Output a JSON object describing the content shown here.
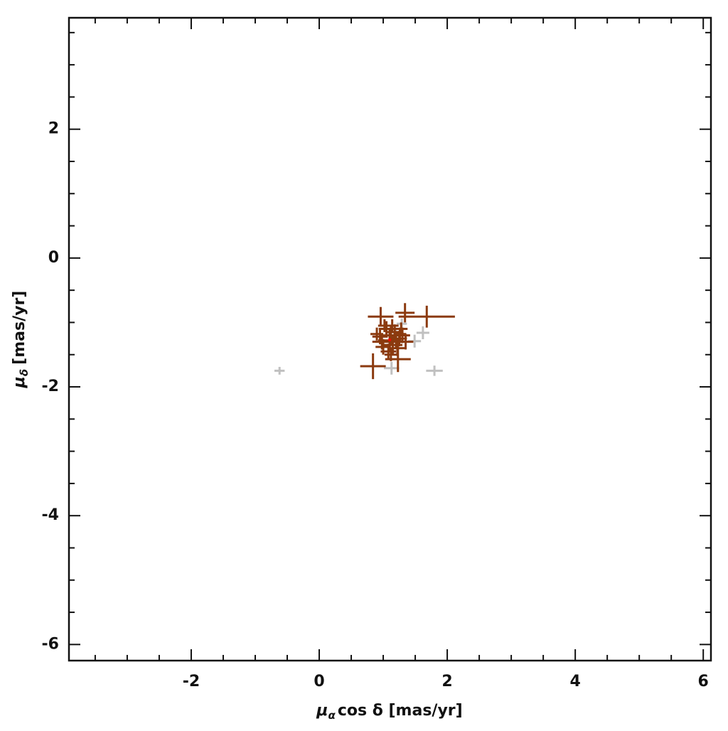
{
  "chart_data": {
    "type": "scatter",
    "x_label": {
      "symbol": "μ",
      "sub": "α",
      "rest": "cos δ [mas/yr]"
    },
    "y_label": {
      "symbol": "μ",
      "sub": "δ",
      "rest": "[mas/yr]"
    },
    "xlim": [
      -3.91,
      6.12
    ],
    "ylim": [
      -6.25,
      3.73
    ],
    "xticks": [
      -2,
      0,
      2,
      4,
      6
    ],
    "yticks": [
      2,
      0,
      -2,
      -4,
      -6
    ],
    "x_minor_ticks": [
      -3.5,
      -3,
      -2.5,
      -1.5,
      -1,
      -0.5,
      0.5,
      1,
      1.5,
      2.5,
      3,
      3.5,
      4.5,
      5,
      5.5
    ],
    "y_minor_ticks": [
      3.5,
      3,
      2.5,
      1.5,
      1,
      0.5,
      -0.5,
      -1,
      -1.5,
      -2.5,
      -3,
      -3.5,
      -4.5,
      -5,
      -5.5
    ],
    "series": [
      {
        "color": "#c0c0c0",
        "x": [
          -0.62,
          1.13,
          1.8,
          1.49,
          1.62,
          1.29,
          1.2
        ],
        "values": [
          -1.75,
          -1.71,
          -1.75,
          -1.29,
          -1.16,
          -1.02,
          -1.2
        ],
        "xerr": [
          0.08,
          0.12,
          0.13,
          0.1,
          0.1,
          0.08,
          0.08
        ],
        "yerr": [
          0.06,
          0.1,
          0.08,
          0.1,
          0.1,
          0.08,
          0.08
        ]
      },
      {
        "color": "#8b3a0f",
        "x": [
          0.84,
          1.23,
          1.68,
          1.34,
          0.96,
          1.05,
          1.12,
          1.18,
          1.25,
          0.98,
          1.3,
          1.02,
          1.15,
          1.22,
          0.9,
          1.1,
          1.28,
          1.08,
          1.2,
          0.95,
          1.35,
          1.14,
          1.0,
          1.26,
          1.12
        ],
        "values": [
          -1.68,
          -1.57,
          -0.91,
          -0.85,
          -0.91,
          -1.1,
          -1.2,
          -1.15,
          -1.25,
          -1.3,
          -1.2,
          -1.05,
          -1.35,
          -1.4,
          -1.18,
          -1.28,
          -1.1,
          -1.45,
          -1.3,
          -1.22,
          -1.3,
          -1.05,
          -1.38,
          -1.18,
          -1.5
        ],
        "xerr": [
          0.2,
          0.2,
          0.44,
          0.15,
          0.2,
          0.12,
          0.15,
          0.12,
          0.12,
          0.15,
          0.12,
          0.1,
          0.15,
          0.12,
          0.1,
          0.18,
          0.1,
          0.12,
          0.1,
          0.12,
          0.12,
          0.1,
          0.12,
          0.1,
          0.1
        ],
        "yerr": [
          0.2,
          0.2,
          0.17,
          0.15,
          0.15,
          0.12,
          0.15,
          0.12,
          0.12,
          0.12,
          0.12,
          0.1,
          0.15,
          0.12,
          0.1,
          0.18,
          0.1,
          0.12,
          0.1,
          0.12,
          0.12,
          0.1,
          0.12,
          0.1,
          0.1
        ]
      },
      {
        "color": "#ff0000",
        "x": [
          1.1
        ],
        "values": [
          -1.27
        ],
        "xerr": [
          0.02
        ],
        "yerr": [
          0.02
        ]
      }
    ]
  }
}
